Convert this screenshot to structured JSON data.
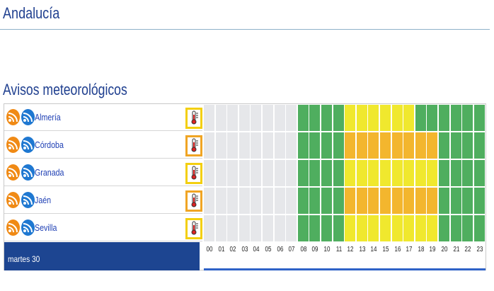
{
  "page": {
    "region_title": "Andalucía",
    "section_title": "Avisos meteorológicos"
  },
  "day_label": "martes 30",
  "hours": [
    "00",
    "01",
    "02",
    "03",
    "04",
    "05",
    "06",
    "07",
    "08",
    "09",
    "10",
    "11",
    "12",
    "13",
    "14",
    "15",
    "16",
    "17",
    "18",
    "19",
    "20",
    "21",
    "22",
    "23"
  ],
  "colors": {
    "none": "#e6e7ea",
    "green": "#4fae5f",
    "yellow": "#f0e82e",
    "orange": "#f3b62e",
    "therm_yellow": "#f3cf10",
    "therm_orange": "#f0a524"
  },
  "regions": [
    {
      "name": "Almería",
      "icons": [
        "rss-icon",
        "rss-icon",
        "thermometer-icon"
      ],
      "warning_color": "yellow",
      "hourly": [
        "none",
        "none",
        "none",
        "none",
        "none",
        "none",
        "none",
        "none",
        "green",
        "green",
        "green",
        "green",
        "yellow",
        "yellow",
        "yellow",
        "yellow",
        "yellow",
        "yellow",
        "green",
        "green",
        "green",
        "green",
        "green",
        "green"
      ]
    },
    {
      "name": "Córdoba",
      "icons": [
        "rss-icon",
        "rss-icon",
        "thermometer-icon"
      ],
      "warning_color": "orange",
      "hourly": [
        "none",
        "none",
        "none",
        "none",
        "none",
        "none",
        "none",
        "none",
        "green",
        "green",
        "green",
        "green",
        "orange",
        "orange",
        "orange",
        "orange",
        "orange",
        "orange",
        "orange",
        "orange",
        "green",
        "green",
        "green",
        "green"
      ]
    },
    {
      "name": "Granada",
      "icons": [
        "rss-icon",
        "rss-icon",
        "thermometer-icon"
      ],
      "warning_color": "yellow",
      "hourly": [
        "none",
        "none",
        "none",
        "none",
        "none",
        "none",
        "none",
        "none",
        "green",
        "green",
        "green",
        "green",
        "yellow",
        "yellow",
        "yellow",
        "yellow",
        "yellow",
        "yellow",
        "yellow",
        "yellow",
        "green",
        "green",
        "green",
        "green"
      ]
    },
    {
      "name": "Jaén",
      "icons": [
        "rss-icon",
        "rss-icon",
        "thermometer-icon"
      ],
      "warning_color": "orange",
      "hourly": [
        "none",
        "none",
        "none",
        "none",
        "none",
        "none",
        "none",
        "none",
        "green",
        "green",
        "green",
        "green",
        "orange",
        "orange",
        "orange",
        "orange",
        "orange",
        "orange",
        "orange",
        "orange",
        "green",
        "green",
        "green",
        "green"
      ]
    },
    {
      "name": "Sevilla",
      "icons": [
        "rss-icon",
        "rss-icon",
        "thermometer-icon"
      ],
      "warning_color": "yellow",
      "hourly": [
        "none",
        "none",
        "none",
        "none",
        "none",
        "none",
        "none",
        "none",
        "green",
        "green",
        "green",
        "green",
        "yellow",
        "yellow",
        "yellow",
        "yellow",
        "yellow",
        "yellow",
        "yellow",
        "yellow",
        "green",
        "green",
        "green",
        "green"
      ]
    }
  ]
}
